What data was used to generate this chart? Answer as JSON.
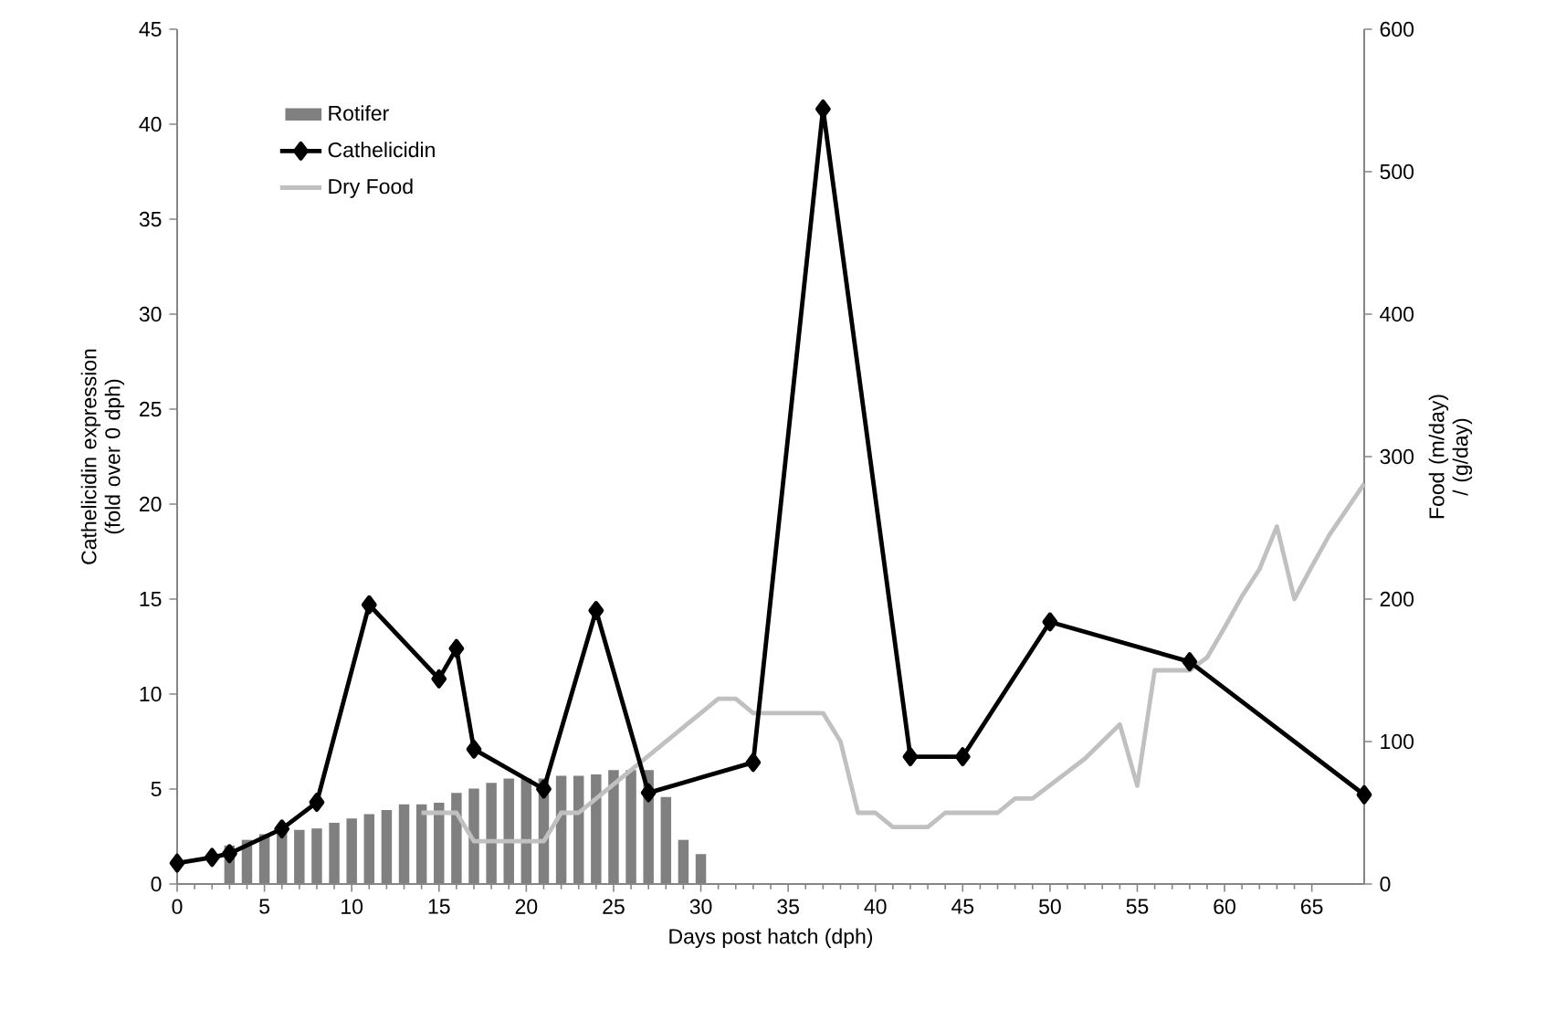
{
  "chart_data": {
    "type": "line",
    "xlabel": "Days post hatch (dph)",
    "ylabel": "Cathelicidin expression (fold over 0 dph)",
    "y2label": "Food (m/day) / (g/day)",
    "xlim": [
      0,
      68
    ],
    "xticks": [
      0,
      5,
      10,
      15,
      20,
      25,
      30,
      35,
      40,
      45,
      50,
      55,
      60,
      65
    ],
    "ylim": [
      0,
      45
    ],
    "yticks": [
      0,
      5,
      10,
      15,
      20,
      25,
      30,
      35,
      40,
      45
    ],
    "y2lim": [
      0,
      600
    ],
    "y2ticks": [
      0,
      100,
      200,
      300,
      400,
      500,
      600
    ],
    "legend": "top left",
    "series": [
      {
        "name": "Rotifer",
        "type": "bar",
        "axis": "y2",
        "color": "#808080",
        "x": [
          3,
          4,
          5,
          6,
          7,
          8,
          9,
          10,
          11,
          12,
          13,
          14,
          15,
          16,
          17,
          18,
          19,
          20,
          21,
          22,
          23,
          24,
          25,
          26,
          27,
          28,
          29,
          30
        ],
        "values": [
          27,
          31,
          35,
          37,
          38,
          39,
          43,
          46,
          49,
          52,
          56,
          56,
          57,
          64,
          67,
          71,
          74,
          74,
          74,
          76,
          76,
          77,
          80,
          80,
          80,
          61,
          31,
          21
        ]
      },
      {
        "name": "Cathelicidin",
        "axis": "y",
        "color": "#000000",
        "marker": "diamond",
        "x": [
          0,
          2,
          3,
          6,
          8,
          11,
          15,
          16,
          17,
          21,
          24,
          27,
          33,
          37,
          42,
          45,
          50,
          58,
          68
        ],
        "values": [
          1.1,
          1.4,
          1.6,
          2.9,
          4.3,
          14.7,
          10.8,
          12.4,
          7.1,
          5.0,
          14.4,
          4.8,
          6.4,
          40.8,
          6.7,
          6.7,
          13.8,
          11.7,
          4.7
        ]
      },
      {
        "name": "Dry Food",
        "axis": "y2",
        "color": "#c0c0c0",
        "x": [
          14,
          16,
          17,
          21,
          22,
          23,
          25,
          27,
          29,
          31,
          32,
          33,
          37,
          38,
          39,
          40,
          41,
          43,
          44,
          47,
          48,
          49,
          52,
          54,
          55,
          56,
          58,
          59,
          60,
          61,
          62,
          63,
          64,
          65,
          66,
          68
        ],
        "values": [
          50,
          50,
          30,
          30,
          50,
          50,
          70,
          90,
          110,
          130,
          130,
          120,
          120,
          100,
          50,
          50,
          40,
          40,
          50,
          50,
          60,
          60,
          88,
          112,
          69,
          150,
          150,
          159,
          180,
          202,
          221,
          251,
          200,
          223,
          245,
          281
        ]
      }
    ]
  }
}
